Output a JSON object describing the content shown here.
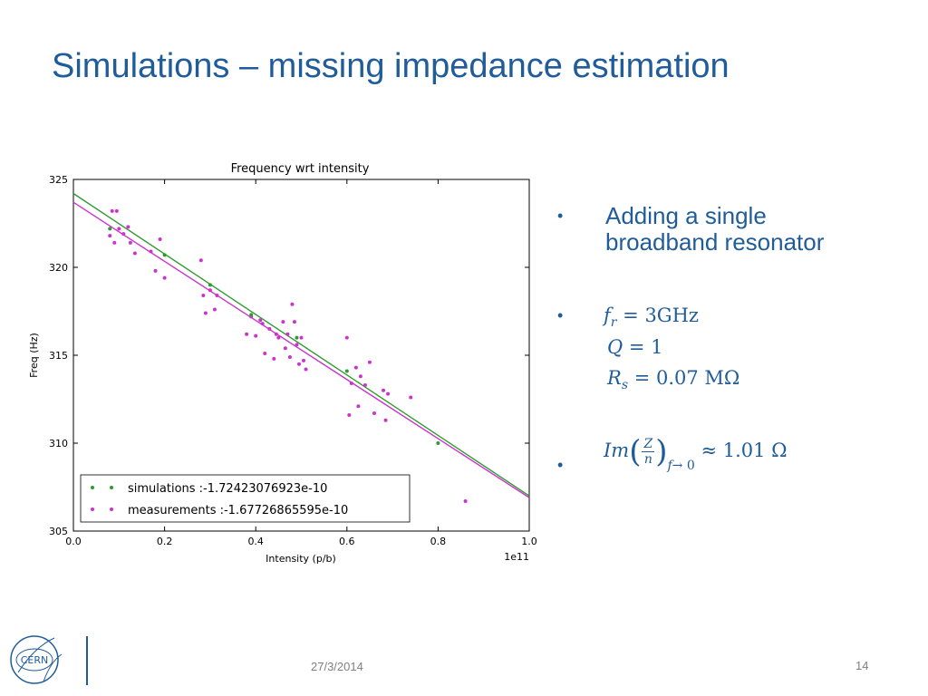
{
  "slide": {
    "title": "Simulations – missing impedance estimation",
    "date": "27/3/2014",
    "page_number": "14",
    "logo_text": "CERN"
  },
  "bullets": {
    "b1_line1": "Adding a single",
    "b1_line2": "broadband resonator",
    "fr_value": "= 3GHz",
    "q_value": "= 1",
    "rs_value": "= 0.07 MΩ",
    "im_value": "≈ 1.01 Ω",
    "bullet_char": "•"
  },
  "colors": {
    "title": "#1f5c99",
    "simulations": "#2e9b2e",
    "measurements": "#cc33cc"
  },
  "chart_data": {
    "type": "scatter",
    "title": "Frequency wrt intensity",
    "xlabel": "Intensity (p/b)",
    "ylabel": "Freq (Hz)",
    "x_offset_label": "1e11",
    "xlim": [
      0.0,
      1.0
    ],
    "ylim": [
      305,
      325
    ],
    "xticks": [
      "0.0",
      "0.2",
      "0.4",
      "0.6",
      "0.8",
      "1.0"
    ],
    "yticks": [
      "305",
      "310",
      "315",
      "320",
      "325"
    ],
    "legend_position": "lower-left",
    "series": [
      {
        "name": "simulations :-1.72423076923e-10",
        "color": "#2e9b2e",
        "fit": [
          [
            0.0,
            324.2
          ],
          [
            1.0,
            307.0
          ]
        ],
        "points": [
          [
            0.08,
            322.2
          ],
          [
            0.2,
            320.7
          ],
          [
            0.3,
            319.0
          ],
          [
            0.39,
            317.3
          ],
          [
            0.49,
            316.0
          ],
          [
            0.6,
            314.1
          ],
          [
            0.8,
            310.0
          ]
        ]
      },
      {
        "name": "measurements :-1.67726865595e-10",
        "color": "#cc33cc",
        "fit": [
          [
            0.0,
            323.7
          ],
          [
            1.0,
            306.9
          ]
        ],
        "points": [
          [
            0.08,
            321.8
          ],
          [
            0.085,
            323.2
          ],
          [
            0.09,
            321.4
          ],
          [
            0.095,
            323.2
          ],
          [
            0.1,
            322.2
          ],
          [
            0.11,
            321.9
          ],
          [
            0.12,
            322.3
          ],
          [
            0.125,
            321.4
          ],
          [
            0.135,
            320.8
          ],
          [
            0.17,
            320.9
          ],
          [
            0.18,
            319.8
          ],
          [
            0.19,
            321.6
          ],
          [
            0.2,
            319.4
          ],
          [
            0.28,
            320.4
          ],
          [
            0.285,
            318.4
          ],
          [
            0.29,
            317.4
          ],
          [
            0.3,
            318.7
          ],
          [
            0.31,
            317.6
          ],
          [
            0.315,
            318.4
          ],
          [
            0.38,
            316.2
          ],
          [
            0.39,
            317.2
          ],
          [
            0.4,
            316.1
          ],
          [
            0.41,
            317.0
          ],
          [
            0.415,
            316.8
          ],
          [
            0.42,
            315.1
          ],
          [
            0.43,
            316.5
          ],
          [
            0.44,
            314.8
          ],
          [
            0.445,
            316.2
          ],
          [
            0.45,
            316.0
          ],
          [
            0.46,
            316.9
          ],
          [
            0.465,
            315.4
          ],
          [
            0.47,
            316.2
          ],
          [
            0.475,
            314.9
          ],
          [
            0.48,
            317.9
          ],
          [
            0.485,
            316.9
          ],
          [
            0.49,
            315.6
          ],
          [
            0.495,
            314.5
          ],
          [
            0.5,
            316.0
          ],
          [
            0.505,
            314.7
          ],
          [
            0.51,
            314.2
          ],
          [
            0.6,
            316.0
          ],
          [
            0.605,
            311.6
          ],
          [
            0.61,
            313.4
          ],
          [
            0.62,
            314.3
          ],
          [
            0.625,
            312.1
          ],
          [
            0.63,
            313.8
          ],
          [
            0.64,
            313.3
          ],
          [
            0.65,
            314.6
          ],
          [
            0.66,
            311.7
          ],
          [
            0.68,
            313.0
          ],
          [
            0.685,
            311.3
          ],
          [
            0.69,
            312.8
          ],
          [
            0.74,
            312.6
          ],
          [
            0.86,
            306.7
          ]
        ]
      }
    ]
  }
}
